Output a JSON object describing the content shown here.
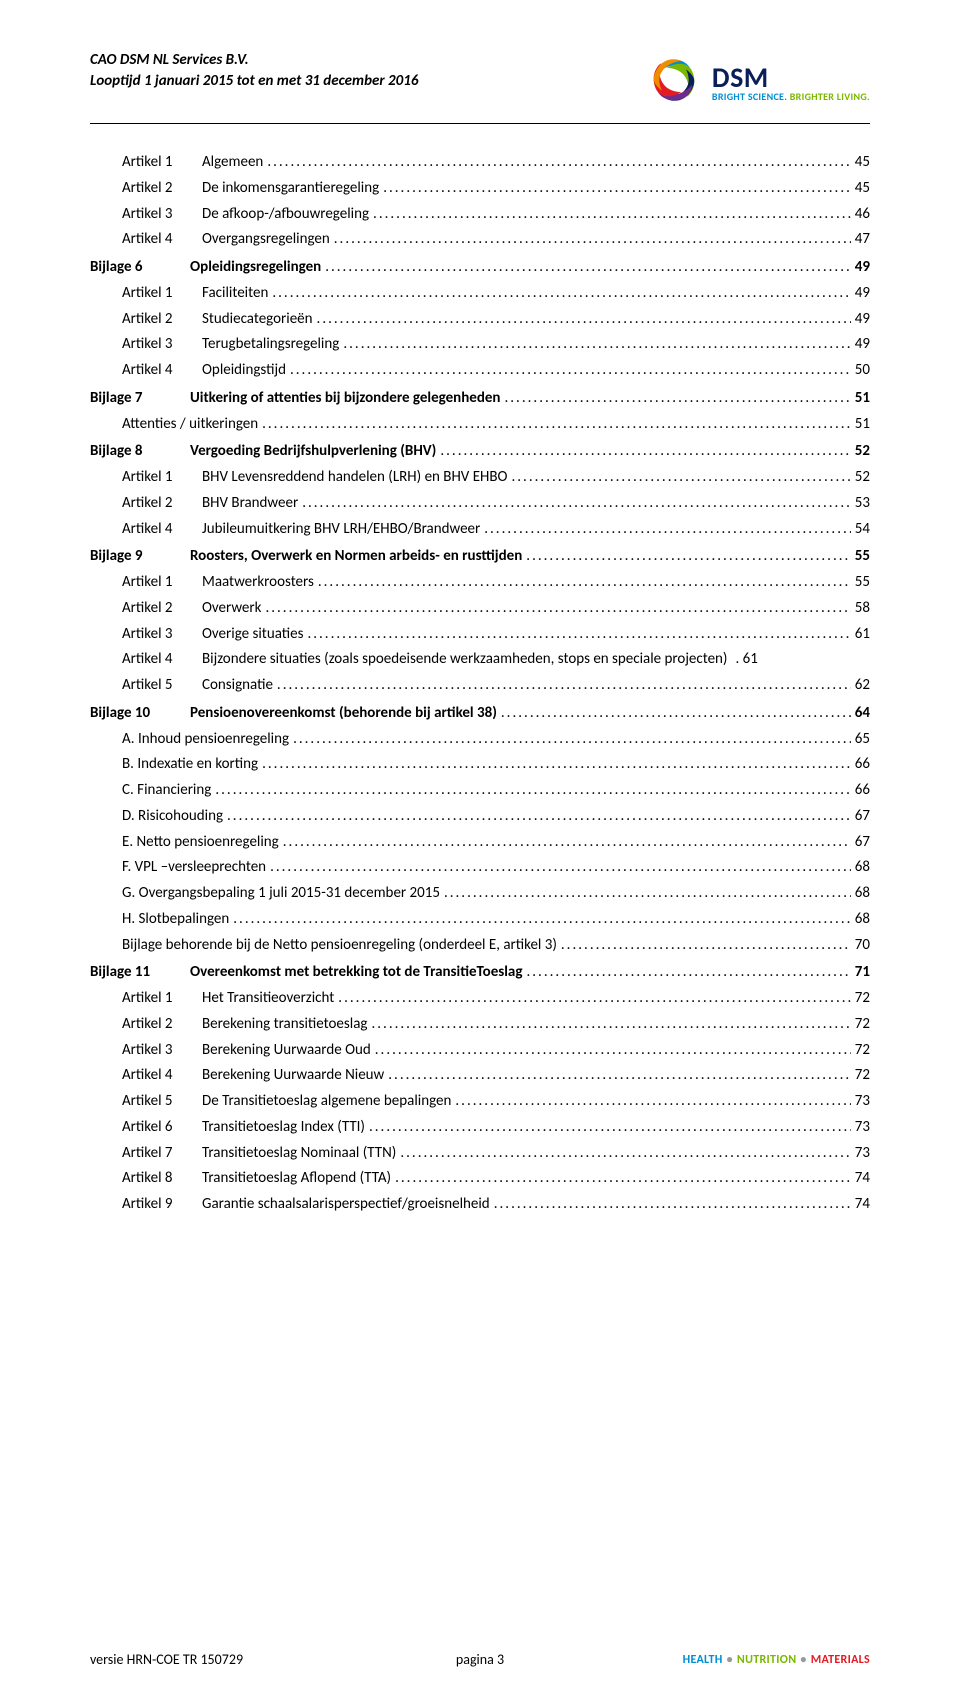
{
  "header": {
    "company": "CAO DSM NL Services B.V.",
    "period": "Looptijd 1 januari 2015 tot en met 31 december 2016",
    "logo_word": "DSM",
    "tagline_1": "BRIGHT SCIENCE.",
    "tagline_2": "BRIGHTER LIVING.",
    "logo_colors": {
      "c1": "#f08c00",
      "c2": "#e31b23",
      "c3": "#7ab800",
      "c4": "#008fd3",
      "c5": "#0a1e5a",
      "c6": "#6e2c8f"
    }
  },
  "toc": [
    {
      "level": 1,
      "label": "Artikel 1",
      "title": "Algemeen",
      "page": "45"
    },
    {
      "level": 1,
      "label": "Artikel 2",
      "title": "De inkomensgarantieregeling",
      "page": "45"
    },
    {
      "level": 1,
      "label": "Artikel 3",
      "title": "De afkoop-/afbouwregeling",
      "page": "46"
    },
    {
      "level": 1,
      "label": "Artikel 4",
      "title": "Overgangsregelingen",
      "page": "47"
    },
    {
      "level": 0,
      "label": "Bijlage  6",
      "title": "Opleidingsregelingen",
      "page": "49",
      "section": true
    },
    {
      "level": 1,
      "label": "Artikel 1",
      "title": "Faciliteiten",
      "page": "49"
    },
    {
      "level": 1,
      "label": "Artikel 2",
      "title": "Studiecategorieën",
      "page": "49"
    },
    {
      "level": 1,
      "label": "Artikel 3",
      "title": "Terugbetalingsregeling",
      "page": "49"
    },
    {
      "level": 1,
      "label": "Artikel 4",
      "title": "Opleidingstijd",
      "page": "50"
    },
    {
      "level": 0,
      "label": "Bijlage 7",
      "title": "Uitkering of attenties bij bijzondere gelegenheden",
      "page": "51",
      "section": true
    },
    {
      "level": 1,
      "label": "",
      "title": "Attenties / uitkeringen",
      "page": "51"
    },
    {
      "level": 0,
      "label": "Bijlage  8",
      "title": "Vergoeding Bedrijfshulpverlening (BHV)",
      "page": "52",
      "section": true
    },
    {
      "level": 1,
      "label": "Artikel 1",
      "title": "BHV Levensreddend handelen (LRH) en BHV EHBO",
      "page": "52"
    },
    {
      "level": 1,
      "label": "Artikel 2",
      "title": "BHV Brandweer",
      "page": "53"
    },
    {
      "level": 1,
      "label": "Artikel 4",
      "title": "Jubileumuitkering BHV LRH/EHBO/Brandweer",
      "page": "54"
    },
    {
      "level": 0,
      "label": "Bijlage  9",
      "title": "Roosters, Overwerk en Normen arbeids- en rusttijden",
      "page": "55",
      "section": true
    },
    {
      "level": 1,
      "label": "Artikel 1",
      "title": "Maatwerkroosters",
      "page": "55"
    },
    {
      "level": 1,
      "label": "Artikel 2",
      "title": "Overwerk",
      "page": "58"
    },
    {
      "level": 1,
      "label": "Artikel 3",
      "title": "Overige situaties",
      "page": "61"
    },
    {
      "level": 1,
      "label": "Artikel 4",
      "title": "Bijzondere situaties  (zoals spoedeisende werkzaamheden, stops en speciale projecten)",
      "page": ". 61",
      "noleader": true
    },
    {
      "level": 1,
      "label": "Artikel 5",
      "title": "Consignatie",
      "page": "62"
    },
    {
      "level": 0,
      "label": "Bijlage 10",
      "title": "Pensioenovereenkomst (behorende bij artikel 38)",
      "page": "64",
      "section": true
    },
    {
      "level": 1,
      "label": "",
      "title": "A. Inhoud pensioenregeling",
      "page": "65"
    },
    {
      "level": 1,
      "label": "",
      "title": "B. Indexatie en korting",
      "page": "66"
    },
    {
      "level": 1,
      "label": "",
      "title": "C. Financiering",
      "page": "66"
    },
    {
      "level": 1,
      "label": "",
      "title": "D. Risicohouding",
      "page": "67"
    },
    {
      "level": 1,
      "label": "",
      "title": "E. Netto pensioenregeling",
      "page": "67"
    },
    {
      "level": 1,
      "label": "",
      "title": "F. VPL –versleeprechten",
      "page": "68"
    },
    {
      "level": 1,
      "label": "",
      "title": "G. Overgangsbepaling 1 juli 2015-31 december 2015",
      "page": "68"
    },
    {
      "level": 1,
      "label": "",
      "title": "H. Slotbepalingen",
      "page": "68"
    },
    {
      "level": 1,
      "label": "",
      "title": "Bijlage behorende bij de Netto pensioenregeling (onderdeel E, artikel 3)",
      "page": "70"
    },
    {
      "level": 0,
      "label": "Bijlage 11",
      "title": "Overeenkomst met betrekking tot de TransitieToeslag",
      "page": "71",
      "section": true
    },
    {
      "level": 1,
      "label": "Artikel 1",
      "title": "Het Transitieoverzicht",
      "page": "72"
    },
    {
      "level": 1,
      "label": "Artikel 2",
      "title": "Berekening transitietoeslag",
      "page": "72"
    },
    {
      "level": 1,
      "label": "Artikel 3",
      "title": "Berekening  Uurwaarde Oud",
      "page": "72"
    },
    {
      "level": 1,
      "label": "Artikel 4",
      "title": "Berekening Uurwaarde Nieuw",
      "page": "72"
    },
    {
      "level": 1,
      "label": "Artikel 5",
      "title": "De Transitietoeslag algemene bepalingen",
      "page": "73"
    },
    {
      "level": 1,
      "label": "Artikel 6",
      "title": "Transitietoeslag Index (TTI)",
      "page": "73"
    },
    {
      "level": 1,
      "label": "Artikel 7",
      "title": "Transitietoeslag Nominaal (TTN)",
      "page": "73"
    },
    {
      "level": 1,
      "label": "Artikel 8",
      "title": "Transitietoeslag Aflopend (TTA)",
      "page": "74"
    },
    {
      "level": 1,
      "label": "Artikel 9",
      "title": "Garantie schaalsalarisperspectief/groeisnelheid",
      "page": "74"
    }
  ],
  "footer": {
    "left": "versie HRN-COE TR 150729",
    "center": "pagina 3",
    "right_1": "HEALTH",
    "right_2": "NUTRITION",
    "right_3": "MATERIALS"
  }
}
